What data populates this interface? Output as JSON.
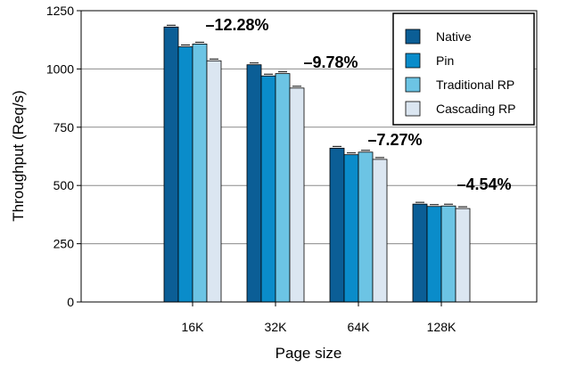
{
  "chart_data": {
    "type": "bar",
    "categories": [
      "16K",
      "32K",
      "64K",
      "128K"
    ],
    "series": [
      {
        "name": "Native",
        "values": [
          1180,
          1018,
          660,
          420
        ],
        "color": "#0b5e96"
      },
      {
        "name": "Pin",
        "values": [
          1095,
          970,
          632,
          410
        ],
        "color": "#0a8cca"
      },
      {
        "name": "Traditional RP",
        "values": [
          1107,
          980,
          643,
          412
        ],
        "color": "#6cc4e4"
      },
      {
        "name": "Cascading RP",
        "values": [
          1035,
          918,
          612,
          401
        ],
        "color": "#dbe6f1"
      }
    ],
    "annotations": [
      "–12.28%",
      "–9.78%",
      "–7.27%",
      "–4.54%"
    ],
    "xlabel": "Page size",
    "ylabel": "Throughput (Req/s)",
    "ylim": [
      0,
      1250
    ],
    "yticks": [
      0,
      250,
      500,
      750,
      1000,
      1250
    ],
    "grid": true,
    "error_bars": true,
    "legend_position": "top-right"
  }
}
